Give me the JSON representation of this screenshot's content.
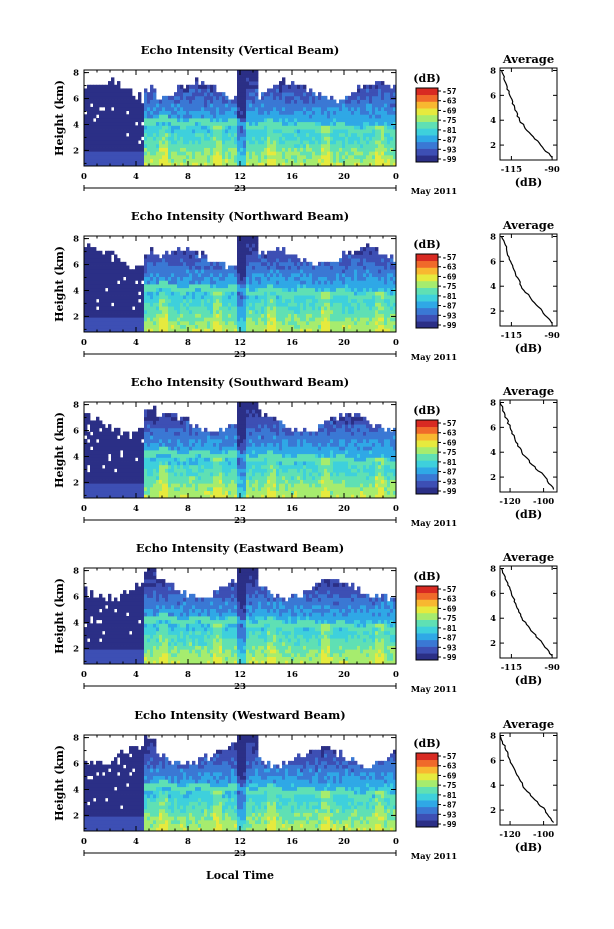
{
  "figure": {
    "x_axis_title": "Local Time",
    "date_label": "May 2011",
    "day_label": "23",
    "colorbar_unit": "(dB)",
    "colorbar_ticks": [
      "-57",
      "-63",
      "-69",
      "-75",
      "-81",
      "-87",
      "-93",
      "-99"
    ],
    "colors": [
      "#2b2f86",
      "#3d4fb4",
      "#3a78d4",
      "#2fa8e6",
      "#3ed0dc",
      "#5fe0b4",
      "#a6ec6e",
      "#e6ea3e",
      "#f8b830",
      "#f06a2a",
      "#d82a22"
    ],
    "time_ticks": [
      "0",
      "4",
      "8",
      "12",
      "16",
      "20",
      "0"
    ],
    "height_ticks": [
      "2",
      "4",
      "6",
      "8"
    ]
  },
  "chart_data": [
    {
      "type": "heatmap",
      "title": "Echo Intensity (Vertical Beam)",
      "ylabel": "Height (km)",
      "xlabel": "Local Time",
      "x_unit": "hour of 23 May 2011",
      "xlim": [
        0,
        24
      ],
      "ylim": [
        0.8,
        8.2
      ],
      "clim": [
        -99,
        -57
      ],
      "note": "echo intensity field (qualitative)",
      "profile": {
        "title": "Average",
        "xlabel": "(dB)",
        "xticks": [
          "-115",
          "-90"
        ],
        "xlim": [
          -122,
          -87
        ],
        "ylim": [
          0.8,
          8.2
        ],
        "points": [
          [
            -121,
            8.0
          ],
          [
            -118.5,
            7.0
          ],
          [
            -116,
            6.0
          ],
          [
            -113,
            5.0
          ],
          [
            -110,
            4.0
          ],
          [
            -104,
            3.0
          ],
          [
            -97,
            2.0
          ],
          [
            -90,
            1.0
          ]
        ]
      }
    },
    {
      "type": "heatmap",
      "title": "Echo Intensity (Northward Beam)",
      "ylabel": "Height (km)",
      "xlabel": "Local Time",
      "x_unit": "hour of 23 May 2011",
      "xlim": [
        0,
        24
      ],
      "ylim": [
        0.8,
        8.2
      ],
      "clim": [
        -99,
        -57
      ],
      "note": "echo intensity field (qualitative)",
      "profile": {
        "title": "Average",
        "xlabel": "(dB)",
        "xticks": [
          "-115",
          "-90"
        ],
        "xlim": [
          -122,
          -87
        ],
        "ylim": [
          0.8,
          8.2
        ],
        "points": [
          [
            -121,
            8.0
          ],
          [
            -118,
            7.0
          ],
          [
            -115.5,
            6.0
          ],
          [
            -112.5,
            5.0
          ],
          [
            -109,
            4.0
          ],
          [
            -103,
            3.0
          ],
          [
            -96,
            2.0
          ],
          [
            -90,
            1.0
          ]
        ]
      }
    },
    {
      "type": "heatmap",
      "title": "Echo Intensity (Southward Beam)",
      "ylabel": "Height (km)",
      "xlabel": "Local Time",
      "x_unit": "hour of 23 May 2011",
      "xlim": [
        0,
        24
      ],
      "ylim": [
        0.8,
        8.2
      ],
      "clim": [
        -99,
        -57
      ],
      "note": "echo intensity field (qualitative)",
      "profile": {
        "title": "Average",
        "xlabel": "(dB)",
        "xticks": [
          "-120",
          "-100"
        ],
        "xlim": [
          -126,
          -92
        ],
        "ylim": [
          0.8,
          8.2
        ],
        "points": [
          [
            -126,
            8.0
          ],
          [
            -123,
            7.0
          ],
          [
            -120,
            6.0
          ],
          [
            -117,
            5.0
          ],
          [
            -113,
            4.0
          ],
          [
            -107,
            3.0
          ],
          [
            -99,
            2.0
          ],
          [
            -94,
            1.0
          ]
        ]
      }
    },
    {
      "type": "heatmap",
      "title": "Echo Intensity (Eastward Beam)",
      "ylabel": "Height (km)",
      "xlabel": "Local Time",
      "x_unit": "hour of 23 May 2011",
      "xlim": [
        0,
        24
      ],
      "ylim": [
        0.8,
        8.2
      ],
      "clim": [
        -99,
        -57
      ],
      "note": "echo intensity field (qualitative)",
      "profile": {
        "title": "Average",
        "xlabel": "(dB)",
        "xticks": [
          "-115",
          "-90"
        ],
        "xlim": [
          -122,
          -87
        ],
        "ylim": [
          0.8,
          8.2
        ],
        "points": [
          [
            -121,
            8.0
          ],
          [
            -118,
            7.0
          ],
          [
            -115,
            6.0
          ],
          [
            -112,
            5.0
          ],
          [
            -108.5,
            4.0
          ],
          [
            -103,
            3.0
          ],
          [
            -96,
            2.0
          ],
          [
            -90,
            1.0
          ]
        ]
      }
    },
    {
      "type": "heatmap",
      "title": "Echo Intensity (Westward Beam)",
      "ylabel": "Height (km)",
      "xlabel": "Local Time",
      "x_unit": "hour of 23 May 2011",
      "xlim": [
        0,
        24
      ],
      "ylim": [
        0.8,
        8.2
      ],
      "clim": [
        -99,
        -57
      ],
      "note": "echo intensity field (qualitative)",
      "profile": {
        "title": "Average",
        "xlabel": "(dB)",
        "xticks": [
          "-120",
          "-100"
        ],
        "xlim": [
          -126,
          -92
        ],
        "ylim": [
          0.8,
          8.2
        ],
        "points": [
          [
            -126,
            8.0
          ],
          [
            -123,
            7.0
          ],
          [
            -120,
            6.0
          ],
          [
            -116.5,
            5.0
          ],
          [
            -112.5,
            4.0
          ],
          [
            -106.5,
            3.0
          ],
          [
            -99,
            2.0
          ],
          [
            -94,
            1.0
          ]
        ]
      }
    }
  ]
}
